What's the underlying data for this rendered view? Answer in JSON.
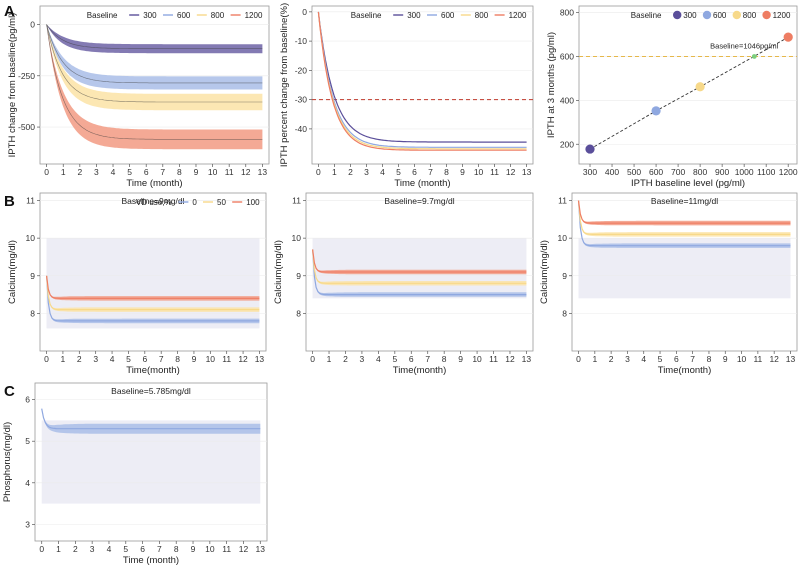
{
  "figure": {
    "panel_labels": [
      "A",
      "B",
      "C"
    ],
    "colors": {
      "s300": "#5a4e9a",
      "s600": "#8fa8e0",
      "s800": "#f7d98a",
      "s1200": "#ee7d63",
      "band300": "#5a4e9a",
      "band600": "#a9bde8",
      "band800": "#fbe3a6",
      "band1200": "#f29a82",
      "normal_range": "#ededf5",
      "threshold_line": "#c0392b",
      "threshold_point": "#7ccf7c"
    }
  },
  "chart_data": [
    {
      "id": "A1",
      "type": "line",
      "xlabel": "Time (month)",
      "ylabel": "IPTH change from baseline(pg/ml)",
      "xlim": [
        -0.4,
        13.4
      ],
      "ylim": [
        -680,
        90
      ],
      "xticks": [
        0,
        1,
        2,
        3,
        4,
        5,
        6,
        7,
        8,
        9,
        10,
        11,
        12,
        13
      ],
      "yticks": [
        0,
        -250,
        -500
      ],
      "ytick_labels": [
        "0",
        "-250",
        "-500"
      ],
      "legend": {
        "title": "Baseline",
        "entries": [
          "300",
          "600",
          "800",
          "1200"
        ],
        "position": "top-right"
      },
      "series": [
        {
          "name": "300",
          "start": 0,
          "final": -118,
          "band": 22,
          "rate": 1.0
        },
        {
          "name": "600",
          "start": 0,
          "final": -285,
          "band": 32,
          "rate": 1.0
        },
        {
          "name": "800",
          "start": 0,
          "final": -378,
          "band": 40,
          "rate": 1.0
        },
        {
          "name": "1200",
          "start": 0,
          "final": -560,
          "band": 48,
          "rate": 1.0
        }
      ]
    },
    {
      "id": "A2",
      "type": "line",
      "xlabel": "Time (month)",
      "ylabel": "IPTH percent change from baseline(%)",
      "xlim": [
        -0.4,
        13.4
      ],
      "ylim": [
        -52,
        2
      ],
      "xticks": [
        0,
        1,
        2,
        3,
        4,
        5,
        6,
        7,
        8,
        9,
        10,
        11,
        12,
        13
      ],
      "yticks": [
        0,
        -10,
        -20,
        -30,
        -40
      ],
      "ytick_labels": [
        "0",
        "-10",
        "-20",
        "-30",
        "-40"
      ],
      "hline": -30,
      "legend": {
        "title": "Baseline",
        "entries": [
          "300",
          "600",
          "800",
          "1200"
        ],
        "position": "top-right"
      },
      "series": [
        {
          "name": "300",
          "start": 0,
          "final": -44.5,
          "band": 0,
          "rate": 1.0
        },
        {
          "name": "600",
          "start": 0,
          "final": -46.3,
          "band": 0,
          "rate": 1.05
        },
        {
          "name": "800",
          "start": 0,
          "final": -46.8,
          "band": 0,
          "rate": 1.08
        },
        {
          "name": "1200",
          "start": 0,
          "final": -47.3,
          "band": 0,
          "rate": 1.1
        }
      ]
    },
    {
      "id": "A3",
      "type": "scatter",
      "xlabel": "IPTH baseline level (pg/ml)",
      "ylabel": "IPTH at 3 months (pg/ml)",
      "xlim": [
        250,
        1240
      ],
      "ylim": [
        110,
        830
      ],
      "xticks": [
        300,
        400,
        500,
        600,
        700,
        800,
        900,
        1000,
        1100,
        1200
      ],
      "yticks": [
        200,
        400,
        600,
        800
      ],
      "hline": 600,
      "threshold": {
        "x": 1046,
        "y": 600,
        "label": "Baseline=1046pg/ml"
      },
      "legend": {
        "title": "Baseline",
        "entries": [
          "300",
          "600",
          "800",
          "1200"
        ],
        "position": "top-right"
      },
      "points": [
        {
          "name": "300",
          "x": 300,
          "y": 178
        },
        {
          "name": "600",
          "x": 600,
          "y": 352
        },
        {
          "name": "800",
          "x": 800,
          "y": 462
        },
        {
          "name": "1200",
          "x": 1200,
          "y": 688
        }
      ]
    },
    {
      "id": "B1",
      "type": "line",
      "title": "Baseline=9mg/dl",
      "xlabel": "Time(month)",
      "ylabel": "Calcium(mg/dl)",
      "xlim": [
        -0.4,
        13.4
      ],
      "ylim": [
        7.0,
        11.2
      ],
      "xticks": [
        0,
        1,
        2,
        3,
        4,
        5,
        6,
        7,
        8,
        9,
        10,
        11,
        12,
        13
      ],
      "yticks": [
        8,
        9,
        10,
        11
      ],
      "normal_range": [
        7.6,
        10.0
      ],
      "legend": {
        "title": "VD use,%",
        "entries": [
          "0",
          "50",
          "100"
        ],
        "position": "top-right"
      },
      "series": [
        {
          "name": "0",
          "start": 9.0,
          "final": 7.8,
          "band": 0.06,
          "rate": 3.0
        },
        {
          "name": "50",
          "start": 9.0,
          "final": 8.1,
          "band": 0.06,
          "rate": 3.0
        },
        {
          "name": "100",
          "start": 9.0,
          "final": 8.4,
          "band": 0.06,
          "rate": 3.0
        }
      ]
    },
    {
      "id": "B2",
      "type": "line",
      "title": "Baseline=9.7mg/dl",
      "xlabel": "Time(month)",
      "ylabel": "Calcium(mg/dl)",
      "xlim": [
        -0.4,
        13.4
      ],
      "ylim": [
        7.0,
        11.2
      ],
      "xticks": [
        0,
        1,
        2,
        3,
        4,
        5,
        6,
        7,
        8,
        9,
        10,
        11,
        12,
        13
      ],
      "yticks": [
        8,
        9,
        10,
        11
      ],
      "normal_range": [
        8.4,
        10.0
      ],
      "series": [
        {
          "name": "0",
          "start": 9.7,
          "final": 8.5,
          "band": 0.06,
          "rate": 3.0
        },
        {
          "name": "50",
          "start": 9.7,
          "final": 8.8,
          "band": 0.06,
          "rate": 3.0
        },
        {
          "name": "100",
          "start": 9.7,
          "final": 9.1,
          "band": 0.06,
          "rate": 3.0
        }
      ]
    },
    {
      "id": "B3",
      "type": "line",
      "title": "Baseline=11mg/dl",
      "xlabel": "Time(month)",
      "ylabel": "Calcium(mg/dl)",
      "xlim": [
        -0.4,
        13.4
      ],
      "ylim": [
        7.0,
        11.2
      ],
      "xticks": [
        0,
        1,
        2,
        3,
        4,
        5,
        6,
        7,
        8,
        9,
        10,
        11,
        12,
        13
      ],
      "yticks": [
        8,
        9,
        10,
        11
      ],
      "normal_range": [
        8.4,
        10.0
      ],
      "series": [
        {
          "name": "0",
          "start": 11.0,
          "final": 9.8,
          "band": 0.06,
          "rate": 3.0
        },
        {
          "name": "50",
          "start": 11.0,
          "final": 10.1,
          "band": 0.06,
          "rate": 3.0
        },
        {
          "name": "100",
          "start": 11.0,
          "final": 10.4,
          "band": 0.06,
          "rate": 3.0
        }
      ]
    },
    {
      "id": "C1",
      "type": "line",
      "title": "Baseline=5.785mg/dl",
      "xlabel": "Time (month)",
      "ylabel": "Phosphorus(mg/dl)",
      "xlim": [
        -0.4,
        13.4
      ],
      "ylim": [
        2.6,
        6.4
      ],
      "xticks": [
        0,
        1,
        2,
        3,
        4,
        5,
        6,
        7,
        8,
        9,
        10,
        11,
        12,
        13
      ],
      "yticks": [
        3,
        4,
        5,
        6
      ],
      "normal_range": [
        3.5,
        5.5
      ],
      "series": [
        {
          "name": "phosphorus",
          "start": 5.785,
          "final": 5.3,
          "band": 0.12,
          "rate": 2.0
        }
      ]
    }
  ]
}
